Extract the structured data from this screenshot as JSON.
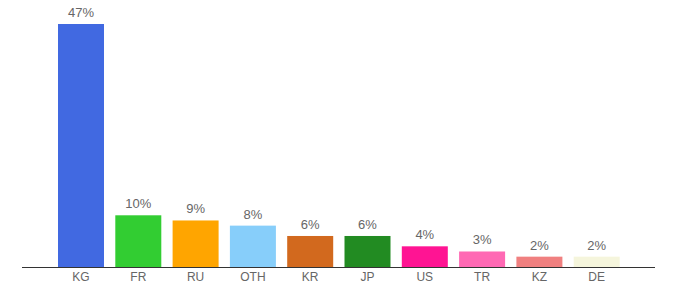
{
  "chart_data": {
    "type": "bar",
    "categories": [
      "KG",
      "FR",
      "RU",
      "OTH",
      "KR",
      "JP",
      "US",
      "TR",
      "KZ",
      "DE"
    ],
    "values": [
      47,
      10,
      9,
      8,
      6,
      6,
      4,
      3,
      2,
      2
    ],
    "value_labels": [
      "47%",
      "10%",
      "9%",
      "8%",
      "6%",
      "6%",
      "4%",
      "3%",
      "2%",
      "2%"
    ],
    "colors": [
      "#4169e1",
      "#32cd32",
      "#ffa500",
      "#87cefa",
      "#d2691e",
      "#228b22",
      "#ff1493",
      "#ff69b4",
      "#f08080",
      "#f5f5dc"
    ],
    "data_labels": true,
    "tick_labels": "x"
  }
}
